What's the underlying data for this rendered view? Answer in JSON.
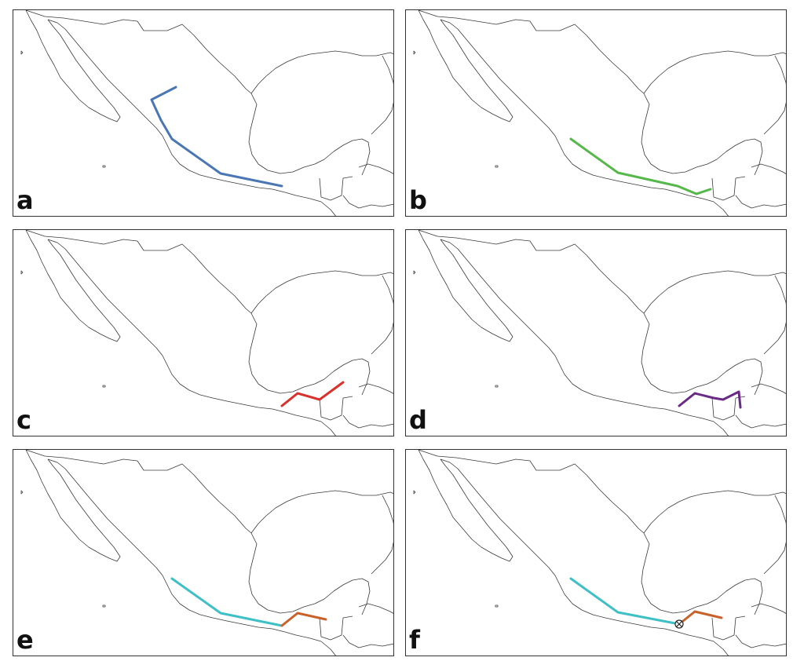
{
  "panels": [
    {
      "id": "a",
      "label": "a"
    },
    {
      "id": "b",
      "label": "b"
    },
    {
      "id": "c",
      "label": "c"
    },
    {
      "id": "d",
      "label": "d"
    },
    {
      "id": "e",
      "label": "e"
    },
    {
      "id": "f",
      "label": "f"
    }
  ],
  "colors": {
    "route_a": "#4a77b4",
    "route_b": "#56b84a",
    "route_c": "#d9312c",
    "route_d": "#6a2b86",
    "route_cyan": "#3fbfc6",
    "route_orange": "#c8622a",
    "coastline": "#3a3a3a"
  },
  "marker_f": "crossed-circle-icon"
}
